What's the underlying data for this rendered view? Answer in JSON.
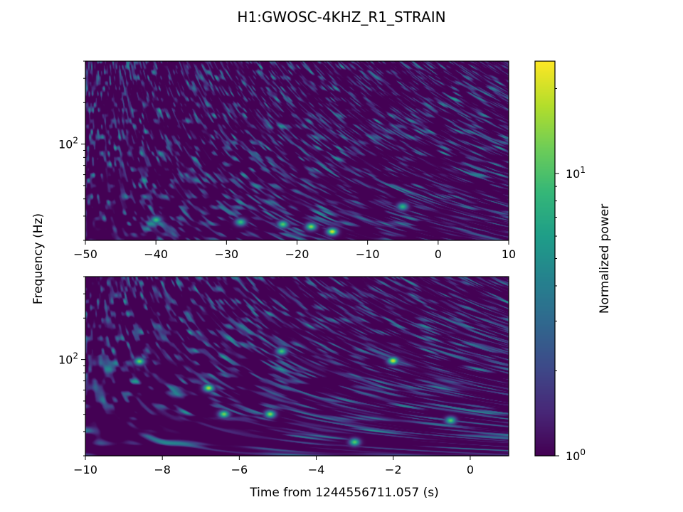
{
  "title": "H1:GWOSC-4KHZ_R1_STRAIN",
  "chart_data": [
    {
      "type": "heatmap",
      "panel": "top",
      "x_ticks": [
        -50,
        -40,
        -30,
        -20,
        -10,
        0,
        10
      ],
      "x_tick_labels": [
        "−50",
        "−40",
        "−30",
        "−20",
        "−10",
        "0",
        "10"
      ],
      "xlim": [
        -50,
        10
      ],
      "y_scale": "log",
      "ylim": [
        20,
        400
      ],
      "y_ticks": [
        100
      ],
      "y_tick_base": "10",
      "y_tick_exponent": "2",
      "colormap": "viridis",
      "max_value": 25,
      "bright_spots": [
        {
          "x": -18.0,
          "y": 25,
          "value": 14
        },
        {
          "x": -15.0,
          "y": 23,
          "value": 20
        },
        {
          "x": -22.0,
          "y": 26,
          "value": 11
        },
        {
          "x": -40.0,
          "y": 28,
          "value": 9
        },
        {
          "x": -28.0,
          "y": 27,
          "value": 9
        },
        {
          "x": -5.0,
          "y": 35,
          "value": 8
        }
      ]
    },
    {
      "type": "heatmap",
      "panel": "bottom",
      "xlabel": "Time from 1244556711.057 (s)",
      "x_ticks": [
        -10,
        -8,
        -6,
        -4,
        -2,
        0
      ],
      "x_tick_labels": [
        "−10",
        "−8",
        "−6",
        "−4",
        "−2",
        "0"
      ],
      "xlim": [
        -10,
        1
      ],
      "y_scale": "log",
      "ylim": [
        20,
        400
      ],
      "y_ticks": [
        100
      ],
      "y_tick_base": "10",
      "y_tick_exponent": "2",
      "colormap": "viridis",
      "max_value": 25,
      "bright_spots": [
        {
          "x": -2.0,
          "y": 98,
          "value": 20
        },
        {
          "x": -8.6,
          "y": 97,
          "value": 12
        },
        {
          "x": -6.8,
          "y": 62,
          "value": 17
        },
        {
          "x": -6.4,
          "y": 40,
          "value": 13
        },
        {
          "x": -5.2,
          "y": 40,
          "value": 14
        },
        {
          "x": -3.0,
          "y": 25,
          "value": 11
        },
        {
          "x": -4.9,
          "y": 115,
          "value": 10
        },
        {
          "x": -0.5,
          "y": 36,
          "value": 11
        }
      ]
    }
  ],
  "shared_ylabel": "Frequency (Hz)",
  "colorbar": {
    "label": "Normalized power",
    "scale": "log",
    "range": [
      1,
      25
    ],
    "ticks": [
      {
        "value": 1,
        "base": "10",
        "exponent": "0"
      },
      {
        "value": 10,
        "base": "10",
        "exponent": "1"
      }
    ]
  }
}
